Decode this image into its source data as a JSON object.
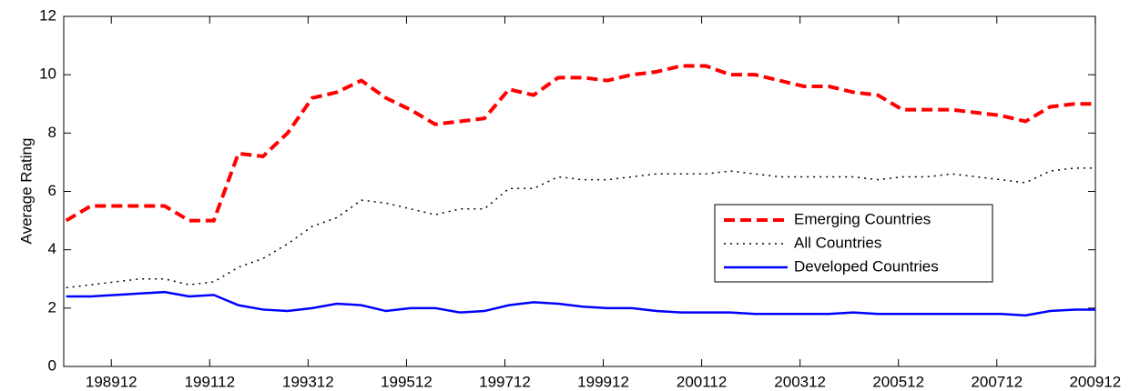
{
  "chart_data": {
    "type": "line",
    "y_label": "Average Rating",
    "x": [
      1989.0,
      1989.5,
      1990.0,
      1990.5,
      1991.0,
      1991.5,
      1992.0,
      1992.5,
      1993.0,
      1993.5,
      1994.0,
      1994.5,
      1995.0,
      1995.5,
      1996.0,
      1996.5,
      1997.0,
      1997.5,
      1998.0,
      1998.5,
      1999.0,
      1999.5,
      2000.0,
      2000.5,
      2001.0,
      2001.5,
      2002.0,
      2002.5,
      2003.0,
      2003.5,
      2004.0,
      2004.5,
      2005.0,
      2005.5,
      2006.0,
      2006.5,
      2007.0,
      2007.5,
      2008.0,
      2008.5,
      2009.0,
      2009.5,
      2009.92
    ],
    "series": [
      {
        "name": "Emerging Countries",
        "color": "#ff0000",
        "dash": "dashed",
        "width": 4,
        "values": [
          5.0,
          5.5,
          5.5,
          5.5,
          5.5,
          5.0,
          5.0,
          7.3,
          7.2,
          8.0,
          9.2,
          9.4,
          9.8,
          9.2,
          8.8,
          8.3,
          8.4,
          8.5,
          9.5,
          9.3,
          9.9,
          9.9,
          9.8,
          10.0,
          10.1,
          10.3,
          10.3,
          10.0,
          10.0,
          9.8,
          9.6,
          9.6,
          9.4,
          9.3,
          8.8,
          8.8,
          8.8,
          8.7,
          8.6,
          8.4,
          8.9,
          9.0,
          9.0
        ]
      },
      {
        "name": "All Countries",
        "color": "#000000",
        "dash": "dotted",
        "width": 1.5,
        "values": [
          2.7,
          2.8,
          2.9,
          3.0,
          3.0,
          2.8,
          2.9,
          3.4,
          3.7,
          4.2,
          4.8,
          5.1,
          5.7,
          5.6,
          5.4,
          5.2,
          5.4,
          5.4,
          6.1,
          6.1,
          6.5,
          6.4,
          6.4,
          6.5,
          6.6,
          6.6,
          6.6,
          6.7,
          6.6,
          6.5,
          6.5,
          6.5,
          6.5,
          6.4,
          6.5,
          6.5,
          6.6,
          6.5,
          6.4,
          6.3,
          6.7,
          6.8,
          6.8
        ]
      },
      {
        "name": "Developed Countries",
        "color": "#0000ff",
        "dash": "solid",
        "width": 2.5,
        "values": [
          2.4,
          2.4,
          2.45,
          2.5,
          2.55,
          2.4,
          2.45,
          2.1,
          1.95,
          1.9,
          2.0,
          2.15,
          2.1,
          1.9,
          2.0,
          2.0,
          1.85,
          1.9,
          2.1,
          2.2,
          2.15,
          2.05,
          2.0,
          2.0,
          1.9,
          1.85,
          1.85,
          1.85,
          1.8,
          1.8,
          1.8,
          1.8,
          1.85,
          1.8,
          1.8,
          1.8,
          1.8,
          1.8,
          1.8,
          1.75,
          1.9,
          1.95,
          1.95
        ]
      }
    ],
    "xlim": [
      1988.95,
      2009.92
    ],
    "xticks": [
      {
        "value": 1989.917,
        "label": "198912"
      },
      {
        "value": 1991.917,
        "label": "199112"
      },
      {
        "value": 1993.917,
        "label": "199312"
      },
      {
        "value": 1995.917,
        "label": "199512"
      },
      {
        "value": 1997.917,
        "label": "199712"
      },
      {
        "value": 1999.917,
        "label": "199912"
      },
      {
        "value": 2001.917,
        "label": "200112"
      },
      {
        "value": 2003.917,
        "label": "200312"
      },
      {
        "value": 2005.917,
        "label": "200512"
      },
      {
        "value": 2007.917,
        "label": "200712"
      },
      {
        "value": 2009.917,
        "label": "200912"
      }
    ],
    "ylim": [
      0,
      12
    ],
    "yticks": [
      0,
      2,
      4,
      6,
      8,
      10,
      12
    ],
    "grid": false,
    "legend": "right"
  }
}
